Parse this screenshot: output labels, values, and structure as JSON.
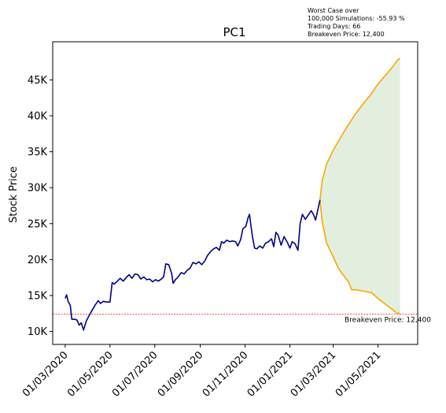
{
  "chart_data": {
    "type": "line",
    "title": "PC1",
    "xlabel": "",
    "ylabel": "Stock Price",
    "annotation_lines": [
      "Worst Case over",
      "100,000 Simulations: -55.93 %",
      "Trading Days: 66",
      "Breakeven Price: 12,400"
    ],
    "breakeven": {
      "value": 12400,
      "label": "Breakeven Price: 12,400",
      "color": "#e0301e"
    },
    "x_ticks": [
      "01/03/2020",
      "01/05/2020",
      "01/07/2020",
      "01/09/2020",
      "01/11/2020",
      "01/01/2021",
      "01/03/2021",
      "01/05/2021"
    ],
    "x_tick_dates": [
      "2020-03-01",
      "2020-05-01",
      "2020-07-01",
      "2020-09-01",
      "2020-11-01",
      "2021-01-01",
      "2021-03-01",
      "2021-05-01"
    ],
    "xlim": [
      "2020-02-13",
      "2021-06-24"
    ],
    "y_ticks": [
      10000,
      15000,
      20000,
      25000,
      30000,
      35000,
      40000,
      45000
    ],
    "y_tick_labels": [
      "10K",
      "15K",
      "20K",
      "25K",
      "30K",
      "35K",
      "40K",
      "45K"
    ],
    "ylim": [
      8200,
      50300
    ],
    "grid": false,
    "colors": {
      "history": "#00008b",
      "simulation": "#ffa500",
      "band": "#d9ead3"
    },
    "history": [
      [
        "2020-03-01",
        14600
      ],
      [
        "2020-03-03",
        15100
      ],
      [
        "2020-03-05",
        14200
      ],
      [
        "2020-03-08",
        13600
      ],
      [
        "2020-03-10",
        11700
      ],
      [
        "2020-03-14",
        11700
      ],
      [
        "2020-03-17",
        11600
      ],
      [
        "2020-03-20",
        10900
      ],
      [
        "2020-03-23",
        11200
      ],
      [
        "2020-03-26",
        10200
      ],
      [
        "2020-03-30",
        11500
      ],
      [
        "2020-04-03",
        12300
      ],
      [
        "2020-04-07",
        13000
      ],
      [
        "2020-04-11",
        13700
      ],
      [
        "2020-04-15",
        14300
      ],
      [
        "2020-04-18",
        13900
      ],
      [
        "2020-04-22",
        14200
      ],
      [
        "2020-04-26",
        14100
      ],
      [
        "2020-05-01",
        14100
      ],
      [
        "2020-05-04",
        16800
      ],
      [
        "2020-05-07",
        16600
      ],
      [
        "2020-05-11",
        17000
      ],
      [
        "2020-05-15",
        17400
      ],
      [
        "2020-05-19",
        17000
      ],
      [
        "2020-05-23",
        17500
      ],
      [
        "2020-05-27",
        17900
      ],
      [
        "2020-05-31",
        17400
      ],
      [
        "2020-06-04",
        18000
      ],
      [
        "2020-06-08",
        17900
      ],
      [
        "2020-06-12",
        17300
      ],
      [
        "2020-06-16",
        17600
      ],
      [
        "2020-06-20",
        17200
      ],
      [
        "2020-06-24",
        17300
      ],
      [
        "2020-06-28",
        16900
      ],
      [
        "2020-07-02",
        17200
      ],
      [
        "2020-07-06",
        17000
      ],
      [
        "2020-07-10",
        17300
      ],
      [
        "2020-07-13",
        17600
      ],
      [
        "2020-07-16",
        19400
      ],
      [
        "2020-07-20",
        19300
      ],
      [
        "2020-07-24",
        18100
      ],
      [
        "2020-07-26",
        16700
      ],
      [
        "2020-07-29",
        17200
      ],
      [
        "2020-08-02",
        17600
      ],
      [
        "2020-08-06",
        18200
      ],
      [
        "2020-08-10",
        18000
      ],
      [
        "2020-08-14",
        18500
      ],
      [
        "2020-08-18",
        18800
      ],
      [
        "2020-08-22",
        19600
      ],
      [
        "2020-08-26",
        19400
      ],
      [
        "2020-08-30",
        19700
      ],
      [
        "2020-09-03",
        19300
      ],
      [
        "2020-09-07",
        19800
      ],
      [
        "2020-09-11",
        20600
      ],
      [
        "2020-09-15",
        21100
      ],
      [
        "2020-09-19",
        21500
      ],
      [
        "2020-09-23",
        21700
      ],
      [
        "2020-09-27",
        21300
      ],
      [
        "2020-09-30",
        22500
      ],
      [
        "2020-10-03",
        22300
      ],
      [
        "2020-10-07",
        22700
      ],
      [
        "2020-10-11",
        22500
      ],
      [
        "2020-10-15",
        22600
      ],
      [
        "2020-10-19",
        22500
      ],
      [
        "2020-10-22",
        21900
      ],
      [
        "2020-10-26",
        22800
      ],
      [
        "2020-10-29",
        24300
      ],
      [
        "2020-11-02",
        24600
      ],
      [
        "2020-11-05",
        25800
      ],
      [
        "2020-11-07",
        26300
      ],
      [
        "2020-11-08",
        25500
      ],
      [
        "2020-11-11",
        23200
      ],
      [
        "2020-11-14",
        21600
      ],
      [
        "2020-11-17",
        21500
      ],
      [
        "2020-11-21",
        21900
      ],
      [
        "2020-11-25",
        21600
      ],
      [
        "2020-11-29",
        22300
      ],
      [
        "2020-12-03",
        22500
      ],
      [
        "2020-12-07",
        22900
      ],
      [
        "2020-12-10",
        21800
      ],
      [
        "2020-12-13",
        23800
      ],
      [
        "2020-12-16",
        23400
      ],
      [
        "2020-12-20",
        22000
      ],
      [
        "2020-12-24",
        23200
      ],
      [
        "2020-12-28",
        22500
      ],
      [
        "2021-01-01",
        21600
      ],
      [
        "2021-01-04",
        22500
      ],
      [
        "2021-01-08",
        22200
      ],
      [
        "2021-01-12",
        21300
      ],
      [
        "2021-01-15",
        25000
      ],
      [
        "2021-01-18",
        26300
      ],
      [
        "2021-01-22",
        25600
      ],
      [
        "2021-01-26",
        26200
      ],
      [
        "2021-01-30",
        26800
      ],
      [
        "2021-02-02",
        26300
      ],
      [
        "2021-02-05",
        25500
      ],
      [
        "2021-02-08",
        26900
      ],
      [
        "2021-02-11",
        28300
      ]
    ],
    "simulation_upper": [
      [
        "2021-02-11",
        28300
      ],
      [
        "2021-02-14",
        31000
      ],
      [
        "2021-02-20",
        33300
      ],
      [
        "2021-03-01",
        35200
      ],
      [
        "2021-03-10",
        36800
      ],
      [
        "2021-03-20",
        38500
      ],
      [
        "2021-03-31",
        40200
      ],
      [
        "2021-04-10",
        41600
      ],
      [
        "2021-04-20",
        42800
      ],
      [
        "2021-04-30",
        44300
      ],
      [
        "2021-05-10",
        45500
      ],
      [
        "2021-05-20",
        46700
      ],
      [
        "2021-05-27",
        47700
      ],
      [
        "2021-05-31",
        48000
      ]
    ],
    "simulation_lower": [
      [
        "2021-02-11",
        28300
      ],
      [
        "2021-02-14",
        25300
      ],
      [
        "2021-02-20",
        22300
      ],
      [
        "2021-02-28",
        20600
      ],
      [
        "2021-03-08",
        18800
      ],
      [
        "2021-03-15",
        17800
      ],
      [
        "2021-03-22",
        16900
      ],
      [
        "2021-03-26",
        15800
      ],
      [
        "2021-04-02",
        15800
      ],
      [
        "2021-04-12",
        15600
      ],
      [
        "2021-04-22",
        15400
      ],
      [
        "2021-05-02",
        14500
      ],
      [
        "2021-05-12",
        13700
      ],
      [
        "2021-05-20",
        13100
      ],
      [
        "2021-05-26",
        12600
      ],
      [
        "2021-05-31",
        12500
      ]
    ]
  }
}
